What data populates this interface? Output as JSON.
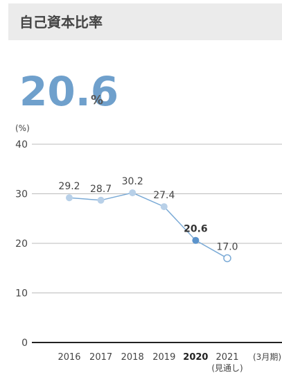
{
  "chart_data": {
    "type": "line",
    "title": "自己資本比率",
    "headline": "20.6",
    "headline_unit": "%",
    "y_label": "(%)",
    "x_unit_label": "(3月期)",
    "forecast_note": "(見通し)",
    "categories": [
      "2016",
      "2017",
      "2018",
      "2019",
      "2020",
      "2021"
    ],
    "values": [
      29.2,
      28.7,
      30.2,
      27.4,
      20.6,
      17.0
    ],
    "value_labels": [
      "29.2",
      "28.7",
      "30.2",
      "27.4",
      "20.6",
      "17.0"
    ],
    "color": "#7aaad6",
    "marker_colors": [
      "#b8d0e8",
      "#b8d0e8",
      "#b8d0e8",
      "#b8d0e8",
      "#5b93cb",
      "#ffffff"
    ],
    "ylim": [
      0,
      40
    ],
    "yticks": [
      0,
      10,
      20,
      30,
      40
    ],
    "grid": true
  }
}
